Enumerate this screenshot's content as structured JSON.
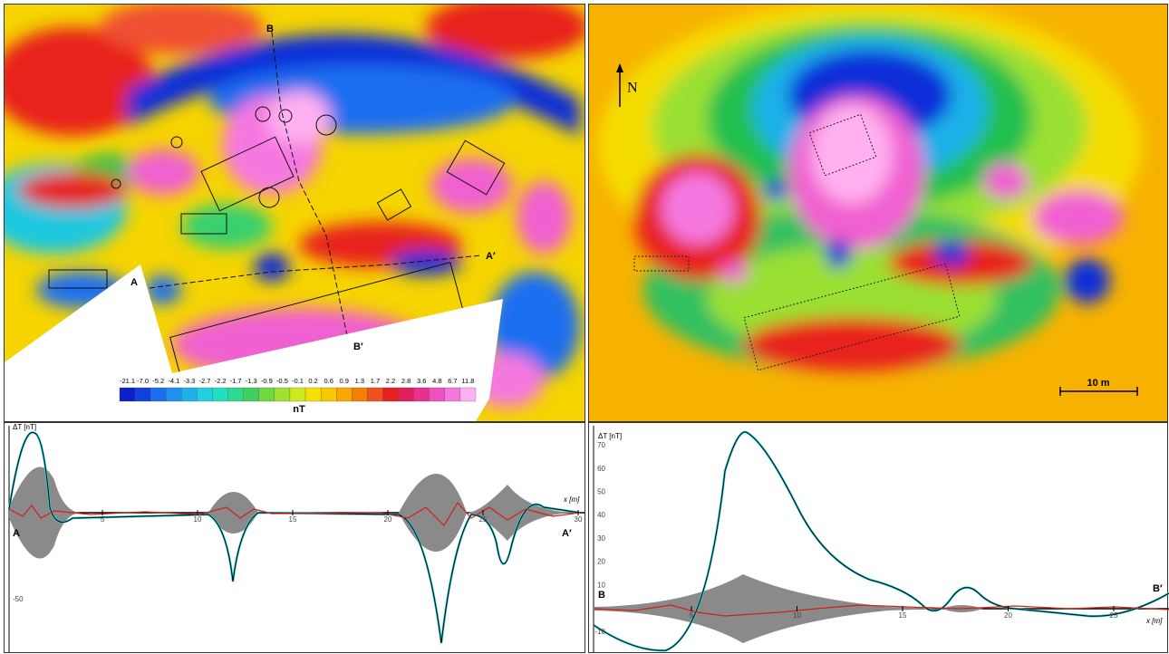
{
  "map_a": {
    "colorbar": {
      "labels": [
        "-21.1",
        "-7.0",
        "-5.2",
        "-4.1",
        "-3.3",
        "-2.7",
        "-2.2",
        "-1.7",
        "-1.3",
        "-0.9",
        "-0.5",
        "-0.1",
        "0.2",
        "0.6",
        "0.9",
        "1.3",
        "1.7",
        "2.2",
        "2.8",
        "3.6",
        "4.8",
        "6.7",
        "11.8"
      ],
      "unit": "nT"
    },
    "profile_labels": {
      "a": "A",
      "a_prime": "A′",
      "b": "B",
      "b_prime": "B′"
    }
  },
  "map_b": {
    "north": "N",
    "scale": "10 m"
  },
  "profile_a": {
    "y_label": "ΔT [nT]",
    "x_label": "x [m]",
    "x_ticks": [
      "5",
      "10",
      "15",
      "20",
      "25",
      "30"
    ],
    "y_ticks": [
      "-50"
    ],
    "start": "A",
    "end": "A′"
  },
  "profile_b": {
    "y_label": "ΔT [nT]",
    "x_label": "x [m]",
    "x_ticks": [
      "5",
      "10",
      "15",
      "20",
      "25"
    ],
    "y_ticks": [
      "70",
      "60",
      "50",
      "40",
      "30",
      "20",
      "10",
      "-10"
    ],
    "start": "B",
    "end": "B′"
  }
}
